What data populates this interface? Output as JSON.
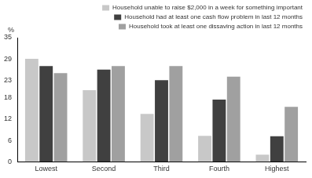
{
  "chart_data": {
    "type": "bar",
    "y_label": "%",
    "categories": [
      "Lowest",
      "Second",
      "Third",
      "Fourth",
      "Highest"
    ],
    "series": [
      {
        "name": "Household unable to raise $2,000 in a week for something important",
        "color": "#c8c8c8",
        "values": [
          29,
          20.2,
          13.5,
          7.3,
          2
        ]
      },
      {
        "name": "Household had at least one cash flow problem in last 12 months",
        "color": "#404040",
        "values": [
          27,
          26,
          23,
          17.5,
          7.2
        ]
      },
      {
        "name": "Household took at least one dissaving action in last 12 months",
        "color": "#a0a0a0",
        "values": [
          25,
          27,
          27,
          24,
          15.5
        ]
      }
    ],
    "ylim": [
      0,
      35
    ],
    "yticks": [
      0,
      6,
      12,
      18,
      23,
      29,
      35
    ],
    "grid": false,
    "legend": "top"
  }
}
